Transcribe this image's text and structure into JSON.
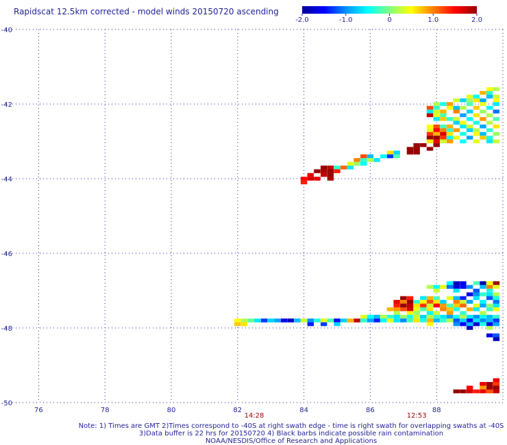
{
  "chart_data": {
    "type": "heatmap",
    "title": "Rapidscat 12.5km corrected - model winds 20150720 ascending",
    "xlim": [
      75,
      90
    ],
    "ylim": [
      -50,
      -40
    ],
    "x_ticks": [
      "76",
      "78",
      "80",
      "82",
      "84",
      "86",
      "88"
    ],
    "x_tick_values": [
      76,
      78,
      80,
      82,
      84,
      86,
      88
    ],
    "y_ticks": [
      "-40",
      "-42",
      "-44",
      "-46",
      "-48",
      "-50"
    ],
    "y_tick_values": [
      -40,
      -42,
      -44,
      -46,
      -48,
      -50
    ],
    "grid": true,
    "colorbar": {
      "min": -2.0,
      "max": 2.0,
      "tick_labels": [
        "-2.0",
        "-1.0",
        "0",
        "1.0",
        "2.0"
      ],
      "tick_values": [
        -2,
        -1,
        0,
        1,
        2
      ],
      "colors": [
        "#000096",
        "#0000ff",
        "#0090ff",
        "#00ffff",
        "#80ff80",
        "#ffff00",
        "#ff8000",
        "#ff0000",
        "#960000"
      ]
    },
    "time_labels": [
      {
        "text": "14:28",
        "x": 82.5
      },
      {
        "text": "12:53",
        "x": 87.4
      }
    ],
    "cell_size_deg": [
      0.25,
      0.125
    ],
    "cells": [
      [
        89.6,
        -41.6,
        0.5
      ],
      [
        89.8,
        -41.6,
        0.2
      ],
      [
        89.4,
        -41.7,
        0.8
      ],
      [
        89.6,
        -41.7,
        -0.3
      ],
      [
        89.0,
        -41.8,
        0.4
      ],
      [
        89.2,
        -41.8,
        -0.5
      ],
      [
        89.6,
        -41.8,
        -0.8
      ],
      [
        89.8,
        -41.8,
        0.3
      ],
      [
        88.6,
        -41.9,
        0.3
      ],
      [
        88.8,
        -41.9,
        -0.7
      ],
      [
        89.0,
        -41.9,
        0.1
      ],
      [
        89.2,
        -41.9,
        0.6
      ],
      [
        89.4,
        -41.9,
        -0.9
      ],
      [
        89.8,
        -41.9,
        0.5
      ],
      [
        88.0,
        -42.0,
        0.2
      ],
      [
        88.2,
        -42.0,
        -0.4
      ],
      [
        88.4,
        -42.0,
        0.9
      ],
      [
        89.0,
        -42.0,
        -0.2
      ],
      [
        89.4,
        -42.0,
        0.4
      ],
      [
        89.8,
        -42.0,
        -0.6
      ],
      [
        87.8,
        -42.1,
        1.2
      ],
      [
        88.0,
        -42.1,
        -0.3
      ],
      [
        88.4,
        -42.1,
        0.5
      ],
      [
        88.6,
        -42.1,
        -0.8
      ],
      [
        88.8,
        -42.1,
        0.2
      ],
      [
        89.2,
        -42.1,
        0.7
      ],
      [
        89.6,
        -42.1,
        -0.5
      ],
      [
        87.8,
        -42.2,
        -0.6
      ],
      [
        88.0,
        -42.2,
        0.3
      ],
      [
        88.2,
        -42.2,
        0.8
      ],
      [
        88.6,
        -42.2,
        1.0
      ],
      [
        89.0,
        -42.2,
        -0.7
      ],
      [
        89.4,
        -42.2,
        0.1
      ],
      [
        89.8,
        -42.2,
        -1.1
      ],
      [
        87.8,
        -42.3,
        1.8
      ],
      [
        88.0,
        -42.3,
        0.4
      ],
      [
        88.2,
        -42.3,
        -0.2
      ],
      [
        88.8,
        -42.3,
        -0.9
      ],
      [
        89.2,
        -42.3,
        0.6
      ],
      [
        89.6,
        -42.3,
        0.2
      ],
      [
        88.0,
        -42.4,
        -0.6
      ],
      [
        88.2,
        -42.4,
        0.7
      ],
      [
        88.4,
        -42.4,
        -0.3
      ],
      [
        88.6,
        -42.4,
        0.3
      ],
      [
        89.0,
        -42.4,
        -0.5
      ],
      [
        89.4,
        -42.4,
        0.9
      ],
      [
        89.8,
        -42.4,
        -0.2
      ],
      [
        88.6,
        -42.5,
        -0.7
      ],
      [
        88.8,
        -42.5,
        0.5
      ],
      [
        89.2,
        -42.5,
        -0.4
      ],
      [
        89.6,
        -42.5,
        0.2
      ],
      [
        87.8,
        -42.6,
        0.5
      ],
      [
        88.0,
        -42.6,
        1.2
      ],
      [
        88.2,
        -42.6,
        -0.2
      ],
      [
        88.4,
        -42.6,
        0.8
      ],
      [
        88.8,
        -42.6,
        -0.6
      ],
      [
        89.0,
        -42.6,
        0.3
      ],
      [
        89.4,
        -42.6,
        -0.9
      ],
      [
        89.8,
        -42.6,
        0.6
      ],
      [
        87.8,
        -42.7,
        0.4
      ],
      [
        88.0,
        -42.7,
        1.5
      ],
      [
        88.2,
        -42.7,
        1.0
      ],
      [
        88.4,
        -42.7,
        -0.3
      ],
      [
        88.6,
        -42.7,
        0.9
      ],
      [
        89.0,
        -42.7,
        -0.7
      ],
      [
        89.2,
        -42.7,
        0.2
      ],
      [
        89.6,
        -42.7,
        -0.3
      ],
      [
        87.8,
        -42.8,
        1.3
      ],
      [
        88.0,
        -42.8,
        0.8
      ],
      [
        88.2,
        -42.8,
        1.7
      ],
      [
        88.4,
        -42.8,
        0.6
      ],
      [
        88.8,
        -42.8,
        -0.4
      ],
      [
        89.2,
        -42.8,
        0.5
      ],
      [
        89.4,
        -42.8,
        -0.8
      ],
      [
        89.8,
        -42.8,
        0.1
      ],
      [
        87.8,
        -42.9,
        2.2
      ],
      [
        88.0,
        -42.9,
        2.0
      ],
      [
        88.2,
        -42.9,
        1.3
      ],
      [
        88.4,
        -42.9,
        -0.5
      ],
      [
        88.6,
        -42.9,
        0.4
      ],
      [
        89.0,
        -42.9,
        -0.9
      ],
      [
        89.4,
        -42.9,
        0.7
      ],
      [
        89.6,
        -42.9,
        -0.4
      ],
      [
        87.8,
        -43.0,
        0.6
      ],
      [
        88.0,
        -43.0,
        1.6
      ],
      [
        88.2,
        -43.0,
        0.3
      ],
      [
        88.4,
        -43.0,
        0.9
      ],
      [
        88.8,
        -43.0,
        -0.5
      ],
      [
        89.2,
        -43.0,
        0.4
      ],
      [
        89.6,
        -43.0,
        -0.6
      ],
      [
        89.8,
        -43.0,
        0.3
      ],
      [
        87.4,
        -43.1,
        2.2
      ],
      [
        87.6,
        -43.1,
        2.2
      ],
      [
        88.0,
        -43.1,
        2.2
      ],
      [
        87.2,
        -43.2,
        2.2
      ],
      [
        87.4,
        -43.2,
        2.2
      ],
      [
        87.8,
        -43.2,
        2.2
      ],
      [
        86.6,
        -43.3,
        0.6
      ],
      [
        86.8,
        -43.3,
        -0.7
      ],
      [
        87.2,
        -43.3,
        2.2
      ],
      [
        87.4,
        -43.3,
        2.2
      ],
      [
        85.8,
        -43.4,
        1.2
      ],
      [
        86.0,
        -43.4,
        -0.8
      ],
      [
        86.4,
        -43.4,
        -0.5
      ],
      [
        86.6,
        -43.4,
        -1.3
      ],
      [
        86.8,
        -43.4,
        -0.2
      ],
      [
        85.6,
        -43.5,
        1.0
      ],
      [
        85.8,
        -43.5,
        -0.3
      ],
      [
        86.0,
        -43.5,
        0.2
      ],
      [
        86.2,
        -43.5,
        -0.6
      ],
      [
        85.4,
        -43.6,
        0.4
      ],
      [
        85.6,
        -43.6,
        0.1
      ],
      [
        85.8,
        -43.6,
        -0.5
      ],
      [
        84.6,
        -43.7,
        2.2
      ],
      [
        84.8,
        -43.7,
        1.8
      ],
      [
        85.0,
        -43.7,
        -0.3
      ],
      [
        85.2,
        -43.7,
        1.1
      ],
      [
        85.4,
        -43.7,
        -0.6
      ],
      [
        84.4,
        -43.8,
        2.2
      ],
      [
        84.6,
        -43.8,
        1.9
      ],
      [
        84.8,
        -43.8,
        2.2
      ],
      [
        85.0,
        -43.8,
        1.4
      ],
      [
        84.2,
        -43.9,
        1.6
      ],
      [
        84.6,
        -43.9,
        1.8
      ],
      [
        84.8,
        -43.9,
        2.0
      ],
      [
        84.0,
        -44.0,
        1.5
      ],
      [
        84.2,
        -44.0,
        1.7
      ],
      [
        84.4,
        -44.0,
        1.6
      ],
      [
        84.8,
        -44.0,
        1.9
      ],
      [
        84.0,
        -44.1,
        1.4
      ],
      [
        88.4,
        -46.8,
        -0.5
      ],
      [
        88.6,
        -46.8,
        -1.8
      ],
      [
        88.8,
        -46.8,
        -1.6
      ],
      [
        89.2,
        -46.8,
        -0.2
      ],
      [
        89.4,
        -46.8,
        -1.9
      ],
      [
        89.6,
        -46.8,
        0.5
      ],
      [
        89.8,
        -46.8,
        2.0
      ],
      [
        87.8,
        -46.9,
        0.2
      ],
      [
        88.0,
        -46.9,
        -0.5
      ],
      [
        88.2,
        -46.9,
        0.4
      ],
      [
        88.4,
        -46.9,
        -1.1
      ],
      [
        88.6,
        -46.9,
        -1.7
      ],
      [
        88.8,
        -46.9,
        -1.5
      ],
      [
        89.0,
        -46.9,
        -1.0
      ],
      [
        89.4,
        -46.9,
        -0.8
      ],
      [
        89.6,
        -46.9,
        1.0
      ],
      [
        89.8,
        -46.9,
        0.4
      ],
      [
        88.0,
        -47.0,
        0.3
      ],
      [
        88.6,
        -47.0,
        -0.6
      ],
      [
        89.2,
        -47.0,
        -1.2
      ],
      [
        89.6,
        -47.0,
        -0.4
      ],
      [
        89.0,
        -47.1,
        -1.6
      ],
      [
        89.2,
        -47.1,
        -1.0
      ],
      [
        89.4,
        -47.1,
        -0.3
      ],
      [
        89.6,
        -47.1,
        -0.6
      ],
      [
        89.8,
        -47.1,
        0.2
      ],
      [
        87.0,
        -47.2,
        2.2
      ],
      [
        87.2,
        -47.2,
        1.4
      ],
      [
        87.6,
        -47.2,
        -0.6
      ],
      [
        87.8,
        -47.2,
        0.8
      ],
      [
        88.0,
        -47.2,
        -0.2
      ],
      [
        88.4,
        -47.2,
        0.4
      ],
      [
        88.6,
        -47.2,
        -0.8
      ],
      [
        88.8,
        -47.2,
        -1.4
      ],
      [
        89.2,
        -47.2,
        -0.6
      ],
      [
        89.6,
        -47.2,
        -1.2
      ],
      [
        89.8,
        -47.2,
        -0.4
      ],
      [
        86.8,
        -47.3,
        1.6
      ],
      [
        87.0,
        -47.3,
        1.0
      ],
      [
        87.2,
        -47.3,
        2.2
      ],
      [
        87.4,
        -47.3,
        -0.3
      ],
      [
        87.6,
        -47.3,
        0.5
      ],
      [
        87.8,
        -47.3,
        1.2
      ],
      [
        88.0,
        -47.3,
        0.6
      ],
      [
        88.2,
        -47.3,
        -0.7
      ],
      [
        88.6,
        -47.3,
        1.0
      ],
      [
        88.8,
        -47.3,
        0.3
      ],
      [
        89.0,
        -47.3,
        -0.9
      ],
      [
        89.4,
        -47.3,
        -0.5
      ],
      [
        89.8,
        -47.3,
        -1.1
      ],
      [
        86.8,
        -47.4,
        1.4
      ],
      [
        87.0,
        -47.4,
        2.0
      ],
      [
        87.2,
        -47.4,
        1.8
      ],
      [
        87.4,
        -47.4,
        0.6
      ],
      [
        87.6,
        -47.4,
        1.3
      ],
      [
        87.8,
        -47.4,
        0.3
      ],
      [
        88.0,
        -47.4,
        1.5
      ],
      [
        88.2,
        -47.4,
        0.9
      ],
      [
        88.4,
        -47.4,
        -0.2
      ],
      [
        88.6,
        -47.4,
        0.7
      ],
      [
        88.8,
        -47.4,
        1.1
      ],
      [
        89.2,
        -47.4,
        0.4
      ],
      [
        89.4,
        -47.4,
        -0.9
      ],
      [
        89.6,
        -47.4,
        0.1
      ],
      [
        89.8,
        -47.4,
        -0.6
      ],
      [
        86.6,
        -47.5,
        0.8
      ],
      [
        86.8,
        -47.5,
        0.9
      ],
      [
        87.0,
        -47.5,
        1.2
      ],
      [
        87.2,
        -47.5,
        1.7
      ],
      [
        87.4,
        -47.5,
        0.4
      ],
      [
        87.6,
        -47.5,
        -0.2
      ],
      [
        87.8,
        -47.5,
        0.6
      ],
      [
        88.2,
        -47.5,
        1.0
      ],
      [
        88.4,
        -47.5,
        0.7
      ],
      [
        88.6,
        -47.5,
        -0.4
      ],
      [
        89.0,
        -47.5,
        0.8
      ],
      [
        89.2,
        -47.5,
        -0.6
      ],
      [
        89.6,
        -47.5,
        -0.3
      ],
      [
        89.8,
        -47.5,
        0.5
      ],
      [
        86.8,
        -47.6,
        0.2
      ],
      [
        87.2,
        -47.6,
        0.5
      ],
      [
        87.4,
        -47.6,
        0.1
      ],
      [
        87.8,
        -47.6,
        -0.5
      ],
      [
        88.0,
        -47.6,
        0.3
      ],
      [
        88.4,
        -47.6,
        0.9
      ],
      [
        88.8,
        -47.6,
        -0.3
      ],
      [
        89.4,
        -47.6,
        0.2
      ],
      [
        85.8,
        -47.7,
        0.4
      ],
      [
        86.0,
        -47.7,
        -0.5
      ],
      [
        86.2,
        -47.7,
        -0.8
      ],
      [
        86.4,
        -47.7,
        0.2
      ],
      [
        86.6,
        -47.7,
        -0.3
      ],
      [
        86.8,
        -47.7,
        -0.6
      ],
      [
        87.0,
        -47.7,
        0.1
      ],
      [
        87.2,
        -47.7,
        -0.4
      ],
      [
        87.4,
        -47.7,
        0.3
      ],
      [
        87.6,
        -47.7,
        -0.7
      ],
      [
        87.8,
        -47.7,
        0.2
      ],
      [
        88.0,
        -47.7,
        -0.3
      ],
      [
        88.2,
        -47.7,
        -0.6
      ],
      [
        88.4,
        -47.7,
        -0.9
      ],
      [
        88.6,
        -47.7,
        -0.4
      ],
      [
        88.8,
        -47.7,
        0.2
      ],
      [
        89.0,
        -47.7,
        -0.6
      ],
      [
        89.2,
        -47.7,
        -1.0
      ],
      [
        89.4,
        -47.7,
        -0.5
      ],
      [
        89.6,
        -47.7,
        -0.8
      ],
      [
        89.8,
        -47.7,
        -0.3
      ],
      [
        82.0,
        -47.8,
        0.5
      ],
      [
        82.2,
        -47.8,
        0.2
      ],
      [
        82.4,
        -47.8,
        -0.1
      ],
      [
        82.6,
        -47.8,
        -0.6
      ],
      [
        82.8,
        -47.8,
        -1.3
      ],
      [
        83.0,
        -47.8,
        -0.7
      ],
      [
        83.2,
        -47.8,
        -0.9
      ],
      [
        83.4,
        -47.8,
        -1.6
      ],
      [
        83.6,
        -47.8,
        -1.8
      ],
      [
        83.8,
        -47.8,
        -0.8
      ],
      [
        84.0,
        -47.8,
        0.3
      ],
      [
        84.2,
        -47.8,
        -1.0
      ],
      [
        84.4,
        -47.8,
        -0.4
      ],
      [
        84.6,
        -47.8,
        0.4
      ],
      [
        84.8,
        -47.8,
        -0.2
      ],
      [
        85.0,
        -47.8,
        -1.5
      ],
      [
        85.2,
        -47.8,
        -0.7
      ],
      [
        85.4,
        -47.8,
        0.8
      ],
      [
        85.6,
        -47.8,
        1.8
      ],
      [
        85.8,
        -47.8,
        -0.3
      ],
      [
        86.0,
        -47.8,
        -0.9
      ],
      [
        86.2,
        -47.8,
        -1.4
      ],
      [
        86.4,
        -47.8,
        -0.5
      ],
      [
        86.6,
        -47.8,
        0.4
      ],
      [
        86.8,
        -47.8,
        -0.6
      ],
      [
        87.0,
        -47.8,
        -1.0
      ],
      [
        87.2,
        -47.8,
        -0.2
      ],
      [
        87.4,
        -47.8,
        0.6
      ],
      [
        87.6,
        -47.8,
        -0.4
      ],
      [
        87.8,
        -47.8,
        0.8
      ],
      [
        88.0,
        -47.8,
        -0.8
      ],
      [
        88.2,
        -47.8,
        -0.3
      ],
      [
        88.4,
        -47.8,
        0.2
      ],
      [
        88.6,
        -47.8,
        -1.2
      ],
      [
        88.8,
        -47.8,
        -0.7
      ],
      [
        89.0,
        -47.8,
        -1.5
      ],
      [
        89.2,
        -47.8,
        -0.6
      ],
      [
        89.4,
        -47.8,
        -1.0
      ],
      [
        89.6,
        -47.8,
        -0.8
      ],
      [
        89.8,
        -47.8,
        -1.3
      ],
      [
        82.0,
        -47.9,
        0.7
      ],
      [
        82.2,
        -47.9,
        0.6
      ],
      [
        84.2,
        -47.9,
        -1.4
      ],
      [
        84.6,
        -47.9,
        -1.3
      ],
      [
        85.0,
        -47.9,
        -0.7
      ],
      [
        87.8,
        -47.9,
        0.5
      ],
      [
        88.6,
        -47.9,
        -1.0
      ],
      [
        88.8,
        -47.9,
        -1.5
      ],
      [
        89.0,
        -47.9,
        -0.8
      ],
      [
        89.2,
        -47.9,
        -1.7
      ],
      [
        89.4,
        -47.9,
        -0.4
      ],
      [
        89.6,
        -47.9,
        -1.6
      ],
      [
        89.8,
        -47.9,
        -0.9
      ],
      [
        89.0,
        -48.0,
        -1.8
      ],
      [
        89.6,
        -48.0,
        0.2
      ],
      [
        89.6,
        -48.2,
        -1.6
      ],
      [
        89.8,
        -48.2,
        -1.2
      ],
      [
        89.8,
        -48.3,
        -1.8
      ],
      [
        89.8,
        -49.4,
        1.6
      ],
      [
        89.4,
        -49.5,
        1.6
      ],
      [
        89.6,
        -49.5,
        2.2
      ],
      [
        89.8,
        -49.5,
        1.3
      ],
      [
        89.0,
        -49.6,
        1.5
      ],
      [
        89.4,
        -49.6,
        0.9
      ],
      [
        89.6,
        -49.6,
        2.0
      ],
      [
        89.8,
        -49.6,
        2.2
      ],
      [
        88.6,
        -49.7,
        2.2
      ],
      [
        88.8,
        -49.7,
        2.2
      ],
      [
        89.0,
        -49.7,
        1.7
      ],
      [
        89.2,
        -49.7,
        1.4
      ],
      [
        89.4,
        -49.7,
        1.6
      ],
      [
        89.6,
        -49.7,
        1.2
      ],
      [
        89.8,
        -49.7,
        1.8
      ]
    ]
  },
  "footer": {
    "note_line1": "Note: 1) Times are GMT 2)Times correspond to -40S at right swath edge - time is right swath for overlapping swaths at -40S",
    "note_line2": "3)Data buffer is 22 hrs for 20150720 4) Black barbs indicate possible rain contamination",
    "note_line3": "NOAA/NESDIS/Office of Research and Applications"
  }
}
